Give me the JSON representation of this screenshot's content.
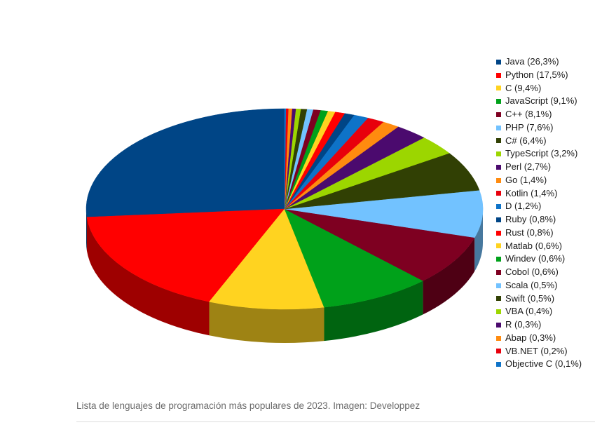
{
  "chart_data": {
    "type": "pie",
    "title": "",
    "three_d": true,
    "legend_position": "right",
    "series": [
      {
        "name": "Java",
        "label": "Java (26,3%)",
        "value": 26.3,
        "color": "#004586"
      },
      {
        "name": "Python",
        "label": "Python (17,5%)",
        "value": 17.5,
        "color": "#ff0000"
      },
      {
        "name": "C",
        "label": "C (9,4%)",
        "value": 9.4,
        "color": "#ffd320"
      },
      {
        "name": "JavaScript",
        "label": "JavaScript (9,1%)",
        "value": 9.1,
        "color": "#00a11a"
      },
      {
        "name": "C++",
        "label": "C++ (8,1%)",
        "value": 8.1,
        "color": "#7e0021"
      },
      {
        "name": "PHP",
        "label": "PHP (7,6%)",
        "value": 7.6,
        "color": "#72c2ff"
      },
      {
        "name": "C#",
        "label": "C# (6,4%)",
        "value": 6.4,
        "color": "#314004"
      },
      {
        "name": "TypeScript",
        "label": "TypeScript (3,2%)",
        "value": 3.2,
        "color": "#9cd600"
      },
      {
        "name": "Perl",
        "label": "Perl (2,7%)",
        "value": 2.7,
        "color": "#4b0a6e"
      },
      {
        "name": "Go",
        "label": "Go (1,4%)",
        "value": 1.4,
        "color": "#ff8b0f"
      },
      {
        "name": "Kotlin",
        "label": "Kotlin (1,4%)",
        "value": 1.4,
        "color": "#e8000c"
      },
      {
        "name": "D",
        "label": "D (1,2%)",
        "value": 1.2,
        "color": "#0e73c8"
      },
      {
        "name": "Ruby",
        "label": "Ruby (0,8%)",
        "value": 0.8,
        "color": "#004586"
      },
      {
        "name": "Rust",
        "label": "Rust (0,8%)",
        "value": 0.8,
        "color": "#ff0000"
      },
      {
        "name": "Matlab",
        "label": "Matlab (0,6%)",
        "value": 0.6,
        "color": "#ffd320"
      },
      {
        "name": "Windev",
        "label": "Windev (0,6%)",
        "value": 0.6,
        "color": "#00a11a"
      },
      {
        "name": "Cobol",
        "label": "Cobol (0,6%)",
        "value": 0.6,
        "color": "#7e0021"
      },
      {
        "name": "Scala",
        "label": "Scala (0,5%)",
        "value": 0.5,
        "color": "#72c2ff"
      },
      {
        "name": "Swift",
        "label": "Swift (0,5%)",
        "value": 0.5,
        "color": "#314004"
      },
      {
        "name": "VBA",
        "label": "VBA (0,4%)",
        "value": 0.4,
        "color": "#9cd600"
      },
      {
        "name": "R",
        "label": "R (0,3%)",
        "value": 0.3,
        "color": "#4b0a6e"
      },
      {
        "name": "Abap",
        "label": "Abap (0,3%)",
        "value": 0.3,
        "color": "#ff8b0f"
      },
      {
        "name": "VB.NET",
        "label": "VB.NET (0,2%)",
        "value": 0.2,
        "color": "#e8000c"
      },
      {
        "name": "Objective C",
        "label": "Objective C (0,1%)",
        "value": 0.1,
        "color": "#0e73c8"
      }
    ]
  },
  "caption": "Lista de lenguajes de programación más populares de 2023. Imagen: Developpez"
}
